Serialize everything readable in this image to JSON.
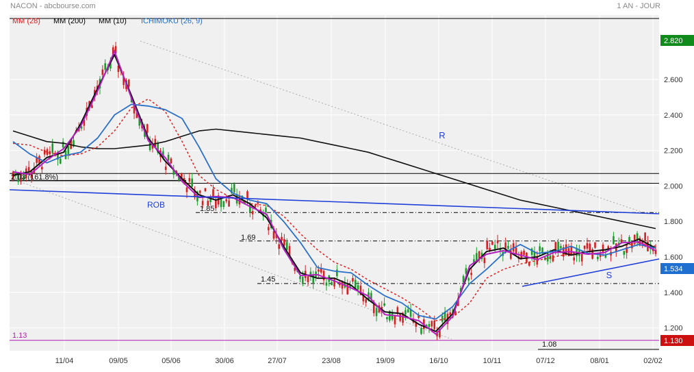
{
  "header": {
    "title": "NACON - abcbourse.com",
    "period": "1 AN - JOUR"
  },
  "legend": [
    {
      "label": "MM (28)",
      "color": "#e02020"
    },
    {
      "label": "MM (200)",
      "color": "#000000"
    },
    {
      "label": "MM (10)",
      "color": "#000000"
    },
    {
      "label": "ICHIMOKU (26, 9)",
      "color": "#1f6fd0"
    }
  ],
  "colors": {
    "background": "#f0f0f0",
    "candle_up": "#1a9c2a",
    "candle_down": "#d42020",
    "mm28": "#e02020",
    "mm200": "#111111",
    "mm10": "#111111",
    "ichimoku_kijun": "#2a6fc8",
    "ichimoku_tenkan": "#b41fc0",
    "trendline": "#1f3fd8",
    "last_price_box": "#1f6fd0",
    "high_box": "#118a1c",
    "low_box": "#cc1010",
    "support_113": "#b01cb0"
  },
  "chart_data": {
    "type": "candlestick",
    "ylim": [
      1.1,
      3.0
    ],
    "y_ticks": [
      "1.200",
      "1.400",
      "1.600",
      "1.800",
      "2.000",
      "2.200",
      "2.400",
      "2.600"
    ],
    "x_ticks": [
      "11/04",
      "09/05",
      "05/06",
      "30/06",
      "27/07",
      "23/08",
      "19/09",
      "16/10",
      "10/11",
      "07/12",
      "08/01",
      "02/02"
    ],
    "last_price": "1.534",
    "high_label": "2.820",
    "low_label": "1.130",
    "levels": [
      {
        "label": "2.03 (161.8%)",
        "value": 2.03
      },
      {
        "label": "1.85",
        "value": 1.85
      },
      {
        "label": "1.69",
        "value": 1.69
      },
      {
        "label": "1.45",
        "value": 1.45
      },
      {
        "label": "1.13",
        "value": 1.13
      },
      {
        "label": "1.08",
        "value": 1.08
      }
    ],
    "annotations": [
      "R",
      "ROB",
      "S"
    ],
    "series": [
      {
        "name": "MM (200)",
        "values": [
          2.31,
          2.28,
          2.25,
          2.24,
          2.22,
          2.21,
          2.21,
          2.22,
          2.23,
          2.25,
          2.28,
          2.31,
          2.32,
          2.31,
          2.3,
          2.29,
          2.28,
          2.27,
          2.25,
          2.23,
          2.21,
          2.19,
          2.16,
          2.13,
          2.1,
          2.07,
          2.04,
          2.01,
          1.98,
          1.95,
          1.92,
          1.9,
          1.88,
          1.86,
          1.84,
          1.82,
          1.8,
          1.78,
          1.76
        ]
      },
      {
        "name": "MM (28)",
        "values": [
          2.24,
          2.23,
          2.19,
          2.17,
          2.18,
          2.22,
          2.31,
          2.44,
          2.49,
          2.42,
          2.25,
          2.06,
          1.98,
          1.93,
          1.9,
          1.89,
          1.83,
          1.73,
          1.64,
          1.57,
          1.53,
          1.47,
          1.42,
          1.37,
          1.31,
          1.24,
          1.26,
          1.34,
          1.48,
          1.53,
          1.56,
          1.58,
          1.6,
          1.62,
          1.63,
          1.64,
          1.66,
          1.68,
          1.66
        ]
      },
      {
        "name": "MM (10)",
        "values": [
          2.06,
          2.08,
          2.16,
          2.19,
          2.35,
          2.55,
          2.74,
          2.51,
          2.27,
          2.14,
          2.04,
          1.95,
          1.92,
          1.95,
          1.9,
          1.82,
          1.66,
          1.51,
          1.48,
          1.48,
          1.44,
          1.36,
          1.29,
          1.28,
          1.22,
          1.18,
          1.28,
          1.53,
          1.63,
          1.65,
          1.59,
          1.6,
          1.64,
          1.61,
          1.63,
          1.64,
          1.66,
          1.7,
          1.65
        ]
      },
      {
        "name": "ICHIMOKU (26, 9)",
        "values": [
          2.25,
          2.18,
          2.13,
          2.17,
          2.19,
          2.27,
          2.4,
          2.46,
          2.45,
          2.43,
          2.38,
          2.22,
          2.04,
          1.96,
          1.92,
          1.9,
          1.8,
          1.68,
          1.54,
          1.52,
          1.51,
          1.44,
          1.38,
          1.34,
          1.27,
          1.25,
          1.32,
          1.45,
          1.53,
          1.62,
          1.67,
          1.62,
          1.63,
          1.66,
          1.62,
          1.61,
          1.64,
          1.67,
          1.65
        ]
      }
    ]
  }
}
